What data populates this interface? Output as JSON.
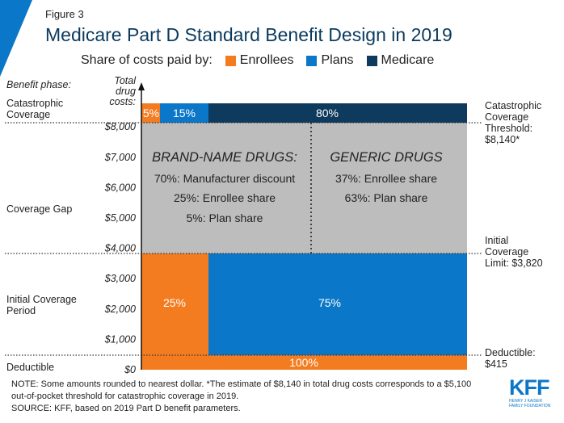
{
  "figure_label": "Figure 3",
  "title": "Medicare Part D Standard Benefit Design in 2019",
  "legend": {
    "prefix": "Share of costs paid by:",
    "items": [
      {
        "label": "Enrollees",
        "color": "#f47c20"
      },
      {
        "label": "Plans",
        "color": "#0b77c8"
      },
      {
        "label": "Medicare",
        "color": "#0e3a5e"
      }
    ]
  },
  "axis": {
    "phase_header": "Benefit phase:",
    "cost_header": [
      "Total",
      "drug",
      "costs:"
    ]
  },
  "phases": {
    "catastrophic": [
      "Catastrophic",
      "Coverage"
    ],
    "gap": [
      "Coverage Gap"
    ],
    "initial": [
      "Initial Coverage",
      "Period"
    ],
    "deductible": [
      "Deductible"
    ]
  },
  "right_labels": {
    "catastrophic": [
      "Catastrophic",
      "Coverage",
      "Threshold:",
      "$8,140*"
    ],
    "initial": [
      "Initial",
      "Coverage",
      "Limit: $3,820"
    ],
    "deductible": [
      "Deductible:",
      "$415"
    ]
  },
  "gap_text": {
    "brand_title": "BRAND-NAME DRUGS:",
    "brand_lines": [
      "70%: Manufacturer discount",
      "25%: Enrollee share",
      "5%: Plan share"
    ],
    "generic_title": "GENERIC DRUGS",
    "generic_lines": [
      "37%: Enrollee share",
      "63%: Plan share"
    ]
  },
  "notes": [
    "NOTE: Some amounts rounded to nearest dollar. *The estimate of $8,140 in total drug costs corresponds to a $5,100",
    "out-of-pocket threshold for catastrophic coverage in 2019.",
    "SOURCE: KFF, based on 2019 Part D benefit parameters."
  ],
  "logo": {
    "main": "KFF",
    "sub": [
      "HENRY J KAISER",
      "FAMILY FOUNDATION"
    ]
  },
  "chart_data": {
    "type": "bar",
    "ylabel": "Total drug costs:",
    "yticks": [
      "$0",
      "$1,000",
      "$2,000",
      "$3,000",
      "$4,000",
      "$5,000",
      "$6,000",
      "$7,000",
      "$8,000"
    ],
    "ylim": [
      0,
      8800
    ],
    "thresholds": {
      "deductible": 415,
      "initial_coverage_limit": 3820,
      "catastrophic": 8140
    },
    "segments": [
      {
        "phase": "Deductible",
        "from": 0,
        "to": 415,
        "shares": [
          {
            "payer": "Enrollees",
            "pct": 100,
            "label": "100%"
          }
        ]
      },
      {
        "phase": "Initial Coverage Period",
        "from": 415,
        "to": 3820,
        "shares": [
          {
            "payer": "Enrollees",
            "pct": 25,
            "label": "25%"
          },
          {
            "payer": "Plans",
            "pct": 75,
            "label": "75%"
          }
        ]
      },
      {
        "phase": "Coverage Gap",
        "from": 3820,
        "to": 8140,
        "shares": []
      },
      {
        "phase": "Catastrophic Coverage",
        "from": 8140,
        "to": 8800,
        "shares": [
          {
            "payer": "Enrollees",
            "pct": 5,
            "label": "5%"
          },
          {
            "payer": "Plans",
            "pct": 15,
            "label": "15%"
          },
          {
            "payer": "Medicare",
            "pct": 80,
            "label": "80%"
          }
        ]
      }
    ]
  }
}
